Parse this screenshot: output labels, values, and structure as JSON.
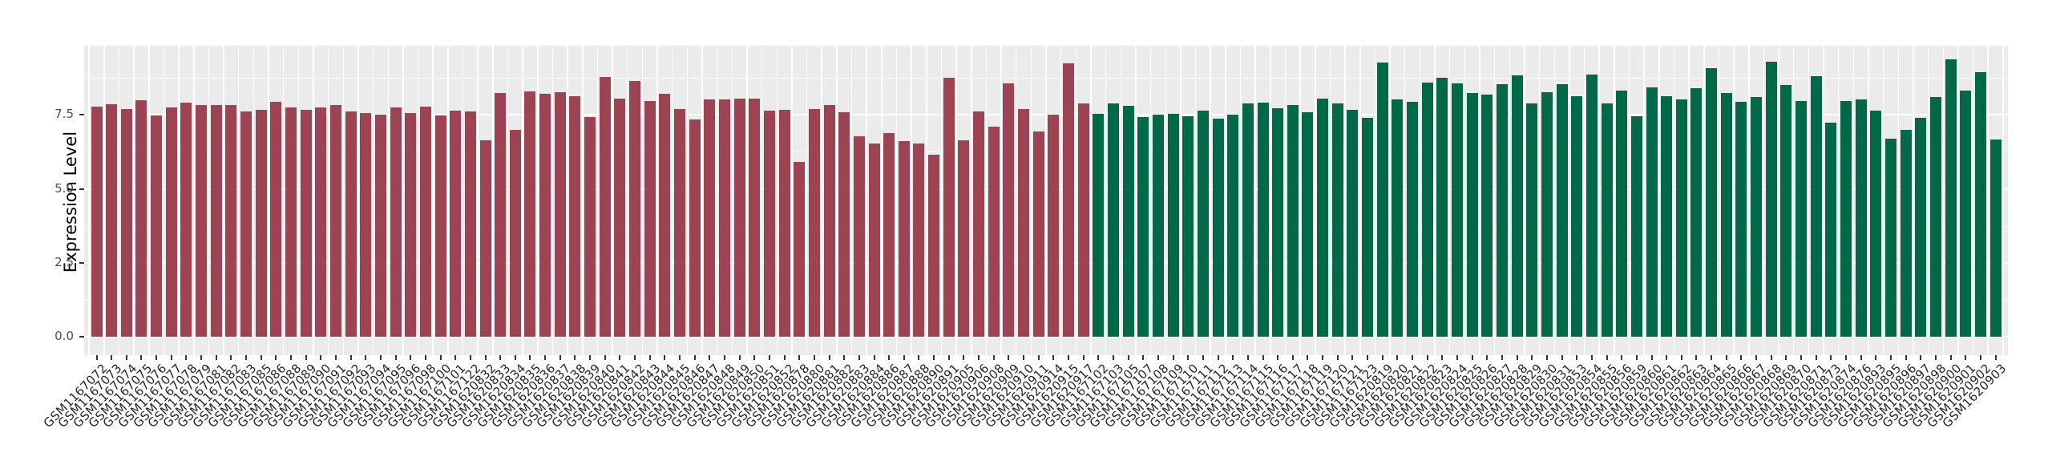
{
  "chart": {
    "panel_bg": "#EBEBEB",
    "grid_color": "#FFFFFF",
    "tick_color": "#333333",
    "tick_label_color": "#4D4D4D",
    "x_label_color": "#262626"
  },
  "chart_data": {
    "type": "bar",
    "title": "",
    "xlabel": "",
    "ylabel": "Expression Level",
    "ylim": [
      0,
      9.85
    ],
    "yticks": [
      0.0,
      2.5,
      5.0,
      7.5
    ],
    "ytick_labels": [
      "0.0",
      "2.5",
      "5.0",
      "7.5"
    ],
    "grid": true,
    "legend_position": "none",
    "series": [
      {
        "name": "red-group",
        "color": "#9C4454",
        "categories": [
          "GSM1167072",
          "GSM1167073",
          "GSM1167074",
          "GSM1167075",
          "GSM1167076",
          "GSM1167077",
          "GSM1167078",
          "GSM1167079",
          "GSM1167081",
          "GSM1167082",
          "GSM1167083",
          "GSM1167085",
          "GSM1167086",
          "GSM1167088",
          "GSM1167089",
          "GSM1167090",
          "GSM1167091",
          "GSM1167092",
          "GSM1167093",
          "GSM1167094",
          "GSM1167095",
          "GSM1167096",
          "GSM1167098",
          "GSM1167100",
          "GSM1167101",
          "GSM1167122",
          "GSM1620832",
          "GSM1620833",
          "GSM1620834",
          "GSM1620835",
          "GSM1620836",
          "GSM1620837",
          "GSM1620838",
          "GSM1620839",
          "GSM1620840",
          "GSM1620841",
          "GSM1620842",
          "GSM1620843",
          "GSM1620844",
          "GSM1620845",
          "GSM1620846",
          "GSM1620847",
          "GSM1620848",
          "GSM1620849",
          "GSM1620850",
          "GSM1620851",
          "GSM1620852",
          "GSM1620878",
          "GSM1620880",
          "GSM1620881",
          "GSM1620882",
          "GSM1620883",
          "GSM1620884",
          "GSM1620886",
          "GSM1620887",
          "GSM1620888",
          "GSM1620890",
          "GSM1620891",
          "GSM1620905",
          "GSM1620906",
          "GSM1620908",
          "GSM1620909",
          "GSM1620910",
          "GSM1620911",
          "GSM1620914",
          "GSM1620915",
          "GSM1620917"
        ],
        "values": [
          7.78,
          7.85,
          7.7,
          8.0,
          7.48,
          7.74,
          7.9,
          7.82,
          7.83,
          7.82,
          7.62,
          7.66,
          7.95,
          7.75,
          7.68,
          7.75,
          7.83,
          7.62,
          7.56,
          7.5,
          7.74,
          7.56,
          7.79,
          7.47,
          7.65,
          7.62,
          6.63,
          8.23,
          6.99,
          8.28,
          8.2,
          8.26,
          8.12,
          7.43,
          8.79,
          8.05,
          8.65,
          7.97,
          8.2,
          7.7,
          7.34,
          8.02,
          8.03,
          8.06,
          8.06,
          7.63,
          7.67,
          5.91,
          7.7,
          7.84,
          7.58,
          6.77,
          6.54,
          6.88,
          6.61,
          6.52,
          6.15,
          8.76,
          6.65,
          7.61,
          7.11,
          8.57,
          7.7,
          6.93,
          7.52,
          9.23,
          7.88
        ]
      },
      {
        "name": "green-group",
        "color": "#016947",
        "categories": [
          "GSM1167102",
          "GSM1167103",
          "GSM1167105",
          "GSM1167107",
          "GSM1167108",
          "GSM1167109",
          "GSM1167110",
          "GSM1167111",
          "GSM1167112",
          "GSM1167113",
          "GSM1167114",
          "GSM1167115",
          "GSM1167116",
          "GSM1167117",
          "GSM1167118",
          "GSM1167119",
          "GSM1167120",
          "GSM1167121",
          "GSM1167123",
          "GSM1620819",
          "GSM1620820",
          "GSM1620821",
          "GSM1620822",
          "GSM1620823",
          "GSM1620824",
          "GSM1620825",
          "GSM1620826",
          "GSM1620827",
          "GSM1620828",
          "GSM1620829",
          "GSM1620830",
          "GSM1620831",
          "GSM1620853",
          "GSM1620854",
          "GSM1620855",
          "GSM1620856",
          "GSM1620859",
          "GSM1620860",
          "GSM1620861",
          "GSM1620862",
          "GSM1620863",
          "GSM1620864",
          "GSM1620865",
          "GSM1620866",
          "GSM1620867",
          "GSM1620868",
          "GSM1620869",
          "GSM1620870",
          "GSM1620871",
          "GSM1620873",
          "GSM1620874",
          "GSM1620876",
          "GSM1620893",
          "GSM1620895",
          "GSM1620896",
          "GSM1620897",
          "GSM1620898",
          "GSM1620900",
          "GSM1620901",
          "GSM1620902",
          "GSM1620903"
        ],
        "values": [
          7.54,
          7.88,
          7.81,
          7.42,
          7.51,
          7.54,
          7.45,
          7.63,
          7.36,
          7.5,
          7.88,
          7.9,
          7.72,
          7.83,
          7.59,
          8.05,
          7.89,
          7.67,
          7.39,
          9.27,
          8.02,
          7.94,
          8.6,
          8.75,
          8.57,
          8.23,
          8.19,
          8.53,
          8.84,
          7.88,
          8.27,
          8.55,
          8.12,
          8.85,
          7.88,
          8.33,
          7.46,
          8.43,
          8.12,
          8.01,
          8.4,
          9.08,
          8.24,
          7.93,
          8.1,
          9.29,
          8.5,
          7.96,
          8.82,
          7.23,
          7.96,
          8.02,
          7.65,
          6.7,
          7.0,
          7.4,
          8.11,
          9.39,
          8.33,
          8.93,
          6.68
        ]
      }
    ]
  }
}
